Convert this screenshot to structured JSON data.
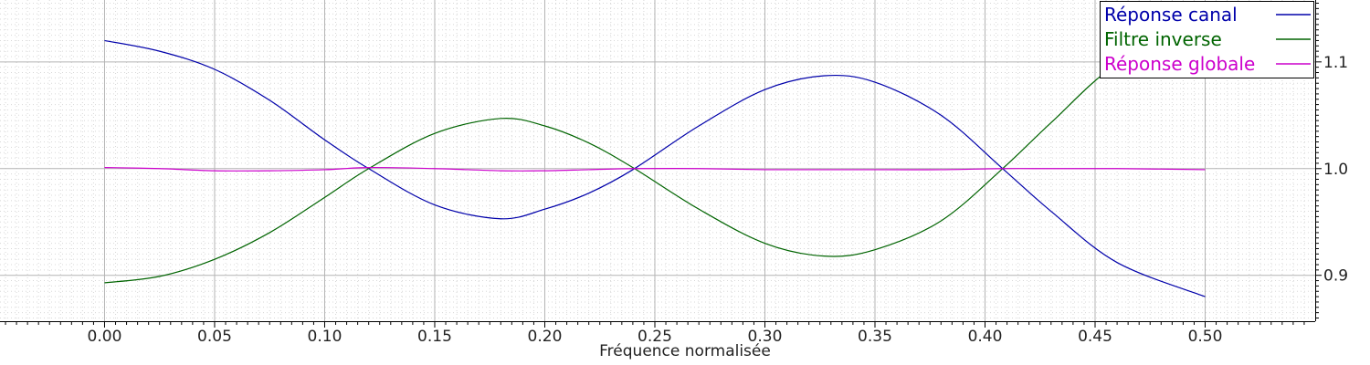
{
  "chart_data": {
    "type": "line",
    "xlabel": "Fréquence normalisée",
    "ylabel": "",
    "xlim": [
      -0.0475,
      0.55
    ],
    "ylim": [
      0.857,
      1.158
    ],
    "x_ticks": [
      "0.00",
      "0.05",
      "0.10",
      "0.15",
      "0.20",
      "0.25",
      "0.30",
      "0.35",
      "0.40",
      "0.45",
      "0.50"
    ],
    "y_ticks": [
      "0.9",
      "1.0",
      "1.1"
    ],
    "y_axis_side": "right",
    "grid": true,
    "minor_grid": true,
    "legend_position": "top-right",
    "x": [
      0.0,
      0.025,
      0.05,
      0.075,
      0.1,
      0.12,
      0.15,
      0.18,
      0.2,
      0.22,
      0.24,
      0.27,
      0.3,
      0.327,
      0.35,
      0.38,
      0.408,
      0.43,
      0.46,
      0.5
    ],
    "series": [
      {
        "name": "Réponse canal",
        "color": "#0000aa",
        "values": [
          1.12,
          1.11,
          1.093,
          1.064,
          1.027,
          1.0,
          0.966,
          0.953,
          0.962,
          0.977,
          0.999,
          1.04,
          1.074,
          1.087,
          1.081,
          1.05,
          1.0,
          0.96,
          0.912,
          0.88
        ]
      },
      {
        "name": "Filtre inverse",
        "color": "#006400",
        "values": [
          0.893,
          0.899,
          0.915,
          0.94,
          0.973,
          1.0,
          1.033,
          1.047,
          1.04,
          1.024,
          1.001,
          0.962,
          0.93,
          0.918,
          0.924,
          0.951,
          1.0,
          1.043,
          1.098,
          1.137
        ]
      },
      {
        "name": "Réponse globale",
        "color": "#cc00cc",
        "values": [
          1.001,
          1.0,
          0.998,
          0.998,
          0.999,
          1.001,
          1.0,
          0.998,
          0.998,
          0.999,
          1.0,
          1.0,
          0.999,
          0.999,
          0.999,
          0.999,
          1.0,
          1.0,
          1.0,
          0.999
        ]
      }
    ]
  }
}
